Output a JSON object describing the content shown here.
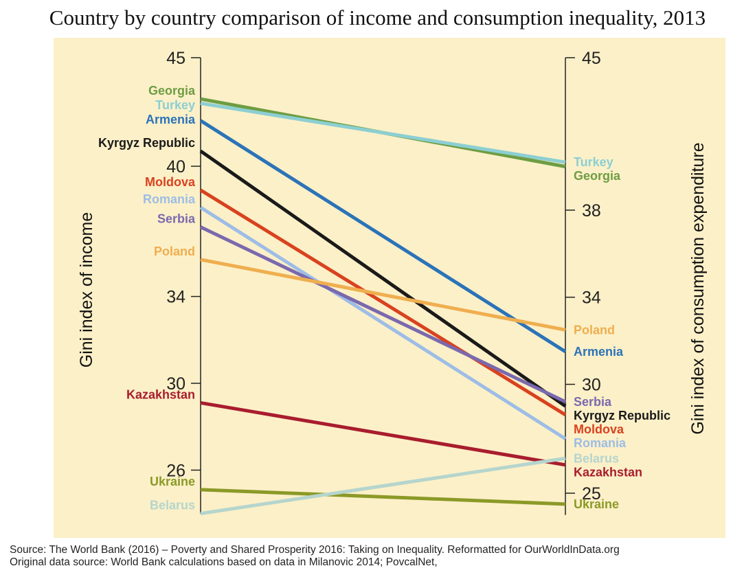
{
  "chart_data": {
    "type": "line",
    "title": "Country by country comparison of income and consumption inequality, 2013",
    "left_axis": {
      "label": "Gini index of income",
      "ticks": [
        45,
        40,
        34,
        30,
        26
      ],
      "range": [
        24,
        45
      ]
    },
    "right_axis": {
      "label": "Gini index of consumption expenditure",
      "ticks": [
        45,
        38,
        34,
        30,
        25
      ],
      "range": [
        24,
        45
      ]
    },
    "background": "#fcf0c8",
    "series": [
      {
        "name": "Georgia",
        "income": 43.1,
        "consumption": 40.0,
        "color": "#6e9d43"
      },
      {
        "name": "Turkey",
        "income": 42.9,
        "consumption": 40.2,
        "color": "#8ccfd2"
      },
      {
        "name": "Armenia",
        "income": 42.1,
        "consumption": 31.5,
        "color": "#2b73b8"
      },
      {
        "name": "Kyrgyz Republic",
        "income": 40.7,
        "consumption": 29.0,
        "color": "#1a1a1a"
      },
      {
        "name": "Moldova",
        "income": 38.9,
        "consumption": 28.6,
        "color": "#d9421f"
      },
      {
        "name": "Romania",
        "income": 38.1,
        "consumption": 27.5,
        "color": "#9dbde6"
      },
      {
        "name": "Serbia",
        "income": 37.2,
        "consumption": 29.2,
        "color": "#7a69ae"
      },
      {
        "name": "Poland",
        "income": 35.7,
        "consumption": 32.5,
        "color": "#efae4f"
      },
      {
        "name": "Kazakhstan",
        "income": 29.1,
        "consumption": 26.3,
        "color": "#a81d2e"
      },
      {
        "name": "Ukraine",
        "income": 25.1,
        "consumption": 24.5,
        "color": "#8b9a27"
      },
      {
        "name": "Belarus",
        "income": 24.0,
        "consumption": 26.6,
        "color": "#b5d5cd"
      }
    ],
    "left_label_order": [
      "Georgia",
      "Turkey",
      "Armenia",
      "Kyrgyz Republic",
      "Moldova",
      "Romania",
      "Serbia",
      "Poland",
      "Kazakhstan",
      "Ukraine",
      "Belarus"
    ],
    "right_label_order": [
      "Turkey",
      "Georgia",
      "Poland",
      "Armenia",
      "Serbia",
      "Kyrgyz Republic",
      "Moldova",
      "Romania",
      "Belarus",
      "Kazakhstan",
      "Ukraine"
    ]
  },
  "source": {
    "line1": "Source: The World Bank (2016) – Poverty and Shared Prosperity 2016: Taking on Inequality. Reformatted for OurWorldInData.org",
    "line2": "Original data source: World Bank calculations based on data in Milanovic 2014; PovcalNet,"
  }
}
